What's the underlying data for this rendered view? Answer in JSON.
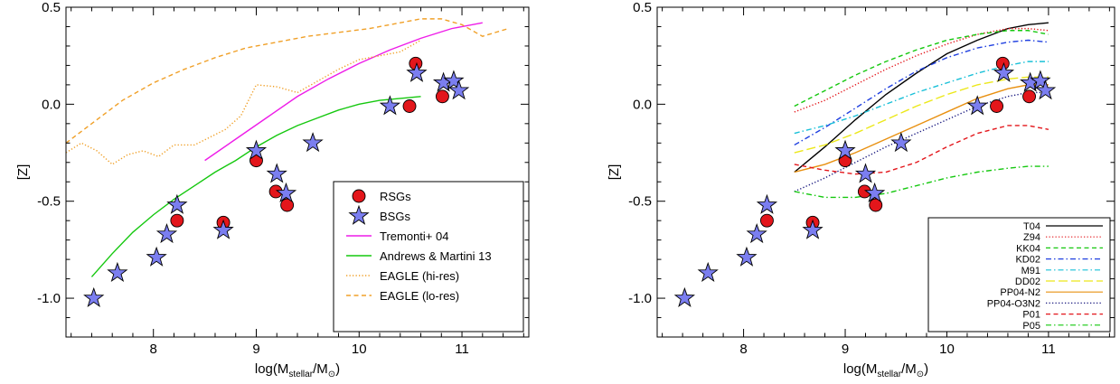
{
  "chart_data": [
    {
      "type": "scatter",
      "xlabel": "log(M_stellar/M_⊙)",
      "ylabel": "[Z]",
      "xlim": [
        7.15,
        11.65
      ],
      "ylim": [
        -1.2,
        0.5
      ],
      "xticks": [
        8,
        9,
        10,
        11
      ],
      "yticks": [
        -1.0,
        -0.5,
        0.0,
        0.5
      ],
      "ytick_labels": [
        "-1.0",
        "-0.5",
        "0.0",
        "0.5"
      ],
      "legend_position": "lower-right",
      "scatter_series": [
        {
          "name": "RSGs",
          "marker": "circle",
          "color": "#e3161b",
          "points": [
            [
              8.23,
              -0.6
            ],
            [
              8.68,
              -0.61
            ],
            [
              9.0,
              -0.29
            ],
            [
              9.19,
              -0.45
            ],
            [
              9.3,
              -0.52
            ],
            [
              10.49,
              -0.01
            ],
            [
              10.55,
              0.21
            ],
            [
              10.81,
              0.04
            ]
          ]
        },
        {
          "name": "BSGs",
          "marker": "star",
          "color": "#7b7ef0",
          "points": [
            [
              7.42,
              -1.0
            ],
            [
              7.65,
              -0.87
            ],
            [
              8.03,
              -0.79
            ],
            [
              8.13,
              -0.67
            ],
            [
              8.23,
              -0.52
            ],
            [
              8.68,
              -0.65
            ],
            [
              9.0,
              -0.24
            ],
            [
              9.2,
              -0.36
            ],
            [
              9.29,
              -0.46
            ],
            [
              9.55,
              -0.2
            ],
            [
              10.3,
              -0.01
            ],
            [
              10.56,
              0.16
            ],
            [
              10.82,
              0.11
            ],
            [
              10.92,
              0.12
            ],
            [
              10.97,
              0.07
            ]
          ]
        }
      ],
      "line_series": [
        {
          "name": "Tremonti+ 04",
          "color": "#ee1ce8",
          "dash": "solid",
          "x": [
            8.5,
            8.8,
            9.1,
            9.4,
            9.7,
            10.0,
            10.3,
            10.6,
            10.9,
            11.2
          ],
          "y": [
            -0.29,
            -0.18,
            -0.07,
            0.04,
            0.13,
            0.21,
            0.28,
            0.34,
            0.39,
            0.42
          ]
        },
        {
          "name": "Andrews & Martini 13",
          "color": "#15c80f",
          "dash": "solid",
          "x": [
            7.4,
            7.6,
            7.8,
            8.0,
            8.2,
            8.4,
            8.6,
            8.8,
            9.0,
            9.2,
            9.4,
            9.6,
            9.8,
            10.0,
            10.2,
            10.4,
            10.6
          ],
          "y": [
            -0.89,
            -0.77,
            -0.66,
            -0.57,
            -0.49,
            -0.42,
            -0.35,
            -0.29,
            -0.22,
            -0.16,
            -0.11,
            -0.07,
            -0.03,
            0.0,
            0.02,
            0.03,
            0.04
          ]
        },
        {
          "name": "EAGLE (hi-res)",
          "color": "#f0a028",
          "dash": "dotted",
          "x": [
            7.15,
            7.3,
            7.45,
            7.6,
            7.75,
            7.9,
            8.05,
            8.2,
            8.4,
            8.55,
            8.7,
            8.85,
            9.0,
            9.2,
            9.4,
            9.6,
            9.8,
            10.0,
            10.2,
            10.4,
            10.6
          ],
          "y": [
            -0.25,
            -0.2,
            -0.24,
            -0.31,
            -0.26,
            -0.24,
            -0.27,
            -0.21,
            -0.21,
            -0.17,
            -0.13,
            -0.06,
            0.1,
            0.09,
            0.06,
            0.12,
            0.18,
            0.23,
            0.25,
            0.27,
            0.33
          ]
        },
        {
          "name": "EAGLE (lo-res)",
          "color": "#f0a028",
          "dash": "dashed",
          "x": [
            7.15,
            7.4,
            7.7,
            8.0,
            8.3,
            8.6,
            8.9,
            9.2,
            9.5,
            9.8,
            10.1,
            10.4,
            10.6,
            10.8,
            11.0,
            11.2,
            11.45
          ],
          "y": [
            -0.2,
            -0.1,
            0.02,
            0.11,
            0.18,
            0.24,
            0.29,
            0.32,
            0.35,
            0.37,
            0.39,
            0.42,
            0.44,
            0.44,
            0.41,
            0.35,
            0.39
          ]
        }
      ],
      "legend": [
        "RSGs",
        "BSGs",
        "Tremonti+ 04",
        "Andrews & Martini 13",
        "EAGLE (hi-res)",
        "EAGLE (lo-res)"
      ]
    },
    {
      "type": "scatter",
      "xlabel": "log(M_stellar/M_⊙)",
      "ylabel": "[Z]",
      "xlim": [
        7.15,
        11.65
      ],
      "ylim": [
        -1.2,
        0.5
      ],
      "xticks": [
        8,
        9,
        10,
        11
      ],
      "yticks": [
        -1.0,
        -0.5,
        0.0,
        0.5
      ],
      "ytick_labels": [
        "-1.0",
        "-0.5",
        "0.0",
        "0.5"
      ],
      "legend_position": "lower-right",
      "scatter_series": [
        {
          "name": "RSGs",
          "marker": "circle",
          "color": "#e3161b",
          "points": [
            [
              8.23,
              -0.6
            ],
            [
              8.68,
              -0.61
            ],
            [
              9.0,
              -0.29
            ],
            [
              9.19,
              -0.45
            ],
            [
              9.3,
              -0.52
            ],
            [
              10.49,
              -0.01
            ],
            [
              10.55,
              0.21
            ],
            [
              10.81,
              0.04
            ]
          ]
        },
        {
          "name": "BSGs",
          "marker": "star",
          "color": "#7b7ef0",
          "points": [
            [
              7.42,
              -1.0
            ],
            [
              7.65,
              -0.87
            ],
            [
              8.03,
              -0.79
            ],
            [
              8.13,
              -0.67
            ],
            [
              8.23,
              -0.52
            ],
            [
              8.68,
              -0.65
            ],
            [
              9.0,
              -0.24
            ],
            [
              9.2,
              -0.36
            ],
            [
              9.29,
              -0.46
            ],
            [
              9.55,
              -0.2
            ],
            [
              10.3,
              -0.01
            ],
            [
              10.56,
              0.16
            ],
            [
              10.82,
              0.11
            ],
            [
              10.92,
              0.12
            ],
            [
              10.97,
              0.07
            ]
          ]
        }
      ],
      "line_series": [
        {
          "name": "T04",
          "color": "#000000",
          "dash": "solid",
          "x": [
            8.5,
            8.8,
            9.1,
            9.4,
            9.7,
            10.0,
            10.3,
            10.6,
            10.8,
            11.0
          ],
          "y": [
            -0.35,
            -0.22,
            -0.08,
            0.05,
            0.16,
            0.26,
            0.33,
            0.39,
            0.41,
            0.42
          ]
        },
        {
          "name": "Z94",
          "color": "#e3161b",
          "dash": "dotted",
          "x": [
            8.5,
            8.8,
            9.1,
            9.4,
            9.7,
            10.0,
            10.3,
            10.6,
            10.8,
            11.0
          ],
          "y": [
            -0.04,
            0.02,
            0.1,
            0.18,
            0.25,
            0.31,
            0.36,
            0.39,
            0.39,
            0.38
          ]
        },
        {
          "name": "KK04",
          "color": "#15c80f",
          "dash": "dashed",
          "x": [
            8.5,
            8.8,
            9.1,
            9.4,
            9.7,
            10.0,
            10.3,
            10.6,
            10.8,
            11.0
          ],
          "y": [
            -0.01,
            0.07,
            0.15,
            0.22,
            0.28,
            0.33,
            0.36,
            0.38,
            0.38,
            0.36
          ]
        },
        {
          "name": "KD02",
          "color": "#2040e0",
          "dash": "dashdot",
          "x": [
            8.5,
            8.8,
            9.1,
            9.4,
            9.7,
            10.0,
            10.3,
            10.6,
            10.8,
            11.0
          ],
          "y": [
            -0.21,
            -0.12,
            -0.02,
            0.08,
            0.17,
            0.24,
            0.29,
            0.32,
            0.33,
            0.32
          ]
        },
        {
          "name": "M91",
          "color": "#19c0d8",
          "dash": "dashdot",
          "x": [
            8.5,
            8.8,
            9.1,
            9.4,
            9.7,
            10.0,
            10.3,
            10.6,
            10.8,
            11.0
          ],
          "y": [
            -0.15,
            -0.11,
            -0.06,
            0.0,
            0.06,
            0.11,
            0.16,
            0.2,
            0.22,
            0.22
          ]
        },
        {
          "name": "DD02",
          "color": "#ece81a",
          "dash": "longdash",
          "x": [
            8.5,
            8.8,
            9.1,
            9.4,
            9.7,
            10.0,
            10.3,
            10.6,
            10.8,
            11.0
          ],
          "y": [
            -0.25,
            -0.21,
            -0.15,
            -0.08,
            -0.01,
            0.05,
            0.1,
            0.13,
            0.14,
            0.14
          ]
        },
        {
          "name": "PP04-N2",
          "color": "#e89010",
          "dash": "solid",
          "x": [
            8.5,
            8.8,
            9.1,
            9.4,
            9.7,
            10.0,
            10.3,
            10.6,
            10.8,
            11.0
          ],
          "y": [
            -0.35,
            -0.31,
            -0.25,
            -0.18,
            -0.11,
            -0.04,
            0.03,
            0.08,
            0.1,
            0.1
          ]
        },
        {
          "name": "PP04-O3N2",
          "color": "#1a1a80",
          "dash": "dotted",
          "x": [
            8.5,
            8.8,
            9.1,
            9.4,
            9.7,
            10.0,
            10.3,
            10.6,
            10.8,
            11.0
          ],
          "y": [
            -0.45,
            -0.38,
            -0.3,
            -0.22,
            -0.15,
            -0.08,
            -0.01,
            0.04,
            0.06,
            0.06
          ]
        },
        {
          "name": "P01",
          "color": "#e3161b",
          "dash": "dashed",
          "x": [
            8.5,
            8.8,
            9.1,
            9.4,
            9.7,
            10.0,
            10.3,
            10.6,
            10.8,
            11.0
          ],
          "y": [
            -0.31,
            -0.34,
            -0.36,
            -0.35,
            -0.3,
            -0.22,
            -0.15,
            -0.11,
            -0.11,
            -0.13
          ]
        },
        {
          "name": "P05",
          "color": "#15c80f",
          "dash": "dashdot",
          "x": [
            8.5,
            8.8,
            9.1,
            9.4,
            9.7,
            10.0,
            10.3,
            10.6,
            10.8,
            11.0
          ],
          "y": [
            -0.45,
            -0.48,
            -0.48,
            -0.46,
            -0.42,
            -0.38,
            -0.35,
            -0.33,
            -0.32,
            -0.32
          ]
        }
      ],
      "legend": [
        "T04",
        "Z94",
        "KK04",
        "KD02",
        "M91",
        "DD02",
        "PP04-N2",
        "PP04-O3N2",
        "P01",
        "P05"
      ]
    }
  ]
}
